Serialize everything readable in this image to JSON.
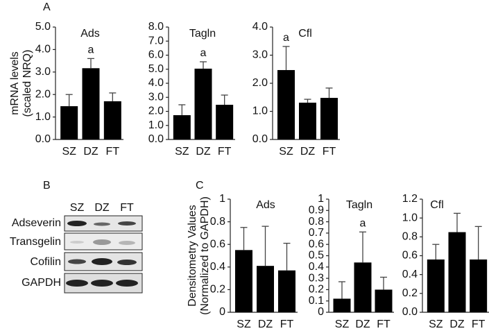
{
  "panel_labels": [
    "A",
    "B",
    "C"
  ],
  "blot": {
    "lanes": [
      "SZ",
      "DZ",
      "FT"
    ],
    "rows": [
      "Adseverin",
      "Transgelin",
      "Cofilin",
      "GAPDH"
    ]
  },
  "chart_data": [
    {
      "type": "bar",
      "title": "Ads",
      "ylabel": [
        "mRNA levels",
        "(scaled NRQ)"
      ],
      "color": "#000000",
      "categories": [
        "SZ",
        "DZ",
        "FT"
      ],
      "values": [
        1.48,
        3.17,
        1.7
      ],
      "errors": [
        0.52,
        0.43,
        0.37
      ],
      "ylim": [
        0,
        5
      ],
      "yticks": [
        {
          "value": 0,
          "label": "0.0"
        },
        {
          "value": 1,
          "label": "1.0"
        },
        {
          "value": 2,
          "label": "2.0"
        },
        {
          "value": 3,
          "label": "3.0"
        },
        {
          "value": 4,
          "label": "4.0"
        },
        {
          "value": 5,
          "label": "5.0"
        }
      ],
      "annotations": [
        {
          "text": "a",
          "category": "DZ"
        }
      ]
    },
    {
      "type": "bar",
      "title": "Tagln",
      "color": "#000000",
      "categories": [
        "SZ",
        "DZ",
        "FT"
      ],
      "values": [
        1.73,
        5.04,
        2.47
      ],
      "errors": [
        0.74,
        0.49,
        0.69
      ],
      "ylim": [
        0,
        8
      ],
      "yticks": [
        {
          "value": 0,
          "label": "0.0"
        },
        {
          "value": 1,
          "label": "1.0"
        },
        {
          "value": 2,
          "label": "2.0"
        },
        {
          "value": 3,
          "label": "3.0"
        },
        {
          "value": 4,
          "label": "4.0"
        },
        {
          "value": 5,
          "label": "5.0"
        },
        {
          "value": 6,
          "label": "6.0"
        },
        {
          "value": 7,
          "label": "7.0"
        },
        {
          "value": 8,
          "label": "8.0"
        }
      ],
      "annotations": [
        {
          "text": "a",
          "category": "DZ"
        }
      ]
    },
    {
      "type": "bar",
      "title": "Cfl",
      "color": "#000000",
      "categories": [
        "SZ",
        "DZ",
        "FT"
      ],
      "values": [
        2.47,
        1.31,
        1.48
      ],
      "errors": [
        0.84,
        0.12,
        0.35
      ],
      "ylim": [
        0,
        4
      ],
      "yticks": [
        {
          "value": 0,
          "label": "0.0"
        },
        {
          "value": 1,
          "label": "1.0"
        },
        {
          "value": 2,
          "label": "2.0"
        },
        {
          "value": 3,
          "label": "3.0"
        },
        {
          "value": 4,
          "label": "4.0"
        }
      ],
      "annotations": [
        {
          "text": "a",
          "category": "SZ"
        }
      ]
    },
    {
      "type": "bar",
      "title": "Ads",
      "ylabel": [
        "Densitometry  Values",
        "(Normalized to GAPDH)"
      ],
      "color": "#000000",
      "categories": [
        "SZ",
        "DZ",
        "FT"
      ],
      "values": [
        0.55,
        0.41,
        0.37
      ],
      "errors": [
        0.2,
        0.35,
        0.24
      ],
      "ylim": [
        0,
        1
      ],
      "yticks": [
        0,
        0.2,
        0.4,
        0.6,
        0.8,
        1
      ]
    },
    {
      "type": "bar",
      "title": "Tagln",
      "color": "#000000",
      "categories": [
        "SZ",
        "DZ",
        "FT"
      ],
      "values": [
        0.12,
        0.44,
        0.2
      ],
      "errors": [
        0.15,
        0.27,
        0.11
      ],
      "ylim": [
        0,
        1
      ],
      "yticks": [
        0,
        0.1,
        0.2,
        0.3,
        0.4,
        0.5,
        0.6,
        0.7,
        0.8,
        0.9,
        1
      ],
      "annotations": [
        {
          "text": "a",
          "category": "DZ"
        }
      ]
    },
    {
      "type": "bar",
      "title": "Cfl",
      "color": "#000000",
      "categories": [
        "SZ",
        "DZ",
        "FT"
      ],
      "values": [
        0.56,
        0.85,
        0.56
      ],
      "errors": [
        0.16,
        0.2,
        0.35
      ],
      "ylim": [
        0,
        1.2
      ],
      "yticks": [
        {
          "value": 0,
          "label": "0.0"
        },
        0.2,
        0.4,
        0.6,
        0.8,
        {
          "value": 1,
          "label": "1.0"
        },
        1.2
      ]
    }
  ]
}
